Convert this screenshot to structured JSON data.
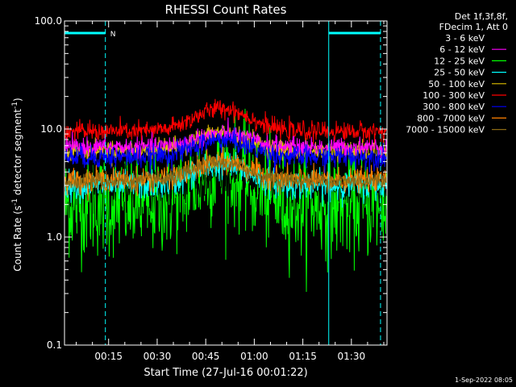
{
  "chart_data": {
    "type": "line",
    "title": "RHESSI Count Rates",
    "xlabel": "Start Time (27-Jul-16 00:01:22)",
    "ylabel_main": "Count Rate (s",
    "ylabel_sup1": "-1",
    "ylabel_mid": " detector segment",
    "ylabel_sup2": "-1",
    "ylabel_end": ")",
    "y_scale": "log",
    "ylim": [
      0.1,
      100.0
    ],
    "xlim_minutes": [
      1.37,
      101.0
    ],
    "y_ticks": [
      {
        "value": 100.0,
        "label": "100.0"
      },
      {
        "value": 10.0,
        "label": "10.0"
      },
      {
        "value": 1.0,
        "label": "1.0"
      },
      {
        "value": 0.1,
        "label": "0.1"
      }
    ],
    "x_ticks": [
      {
        "minute": 15,
        "label": "00:15"
      },
      {
        "minute": 30,
        "label": "00:30"
      },
      {
        "minute": 45,
        "label": "00:45"
      },
      {
        "minute": 60,
        "label": "01:00"
      },
      {
        "minute": 75,
        "label": "01:15"
      },
      {
        "minute": 90,
        "label": "01:30"
      }
    ],
    "legend_header": [
      "Det 1f,3f,8f,",
      "FDecim 1, Att 0"
    ],
    "legend_position": "top-right outside",
    "series": [
      {
        "name": "3 - 6 keV",
        "color": "#000000",
        "base": 3.0,
        "peak": 4.0,
        "noise": 0.22
      },
      {
        "name": "6 - 12 keV",
        "color": "#ff00ff",
        "base": 6.8,
        "peak": 9.0,
        "noise": 0.1
      },
      {
        "name": "12 - 25 keV",
        "color": "#00ff00",
        "base": 2.0,
        "peak": 4.2,
        "noise": 0.55
      },
      {
        "name": "25 - 50 keV",
        "color": "#00ffff",
        "base": 3.0,
        "peak": 4.6,
        "noise": 0.15
      },
      {
        "name": "50 - 100 keV",
        "color": "#e0c000",
        "base": 6.3,
        "peak": 9.2,
        "noise": 0.1
      },
      {
        "name": "100 - 300 keV",
        "color": "#ff0000",
        "base": 9.5,
        "peak": 15.5,
        "noise": 0.1
      },
      {
        "name": "300 - 800 keV",
        "color": "#0000ff",
        "base": 5.5,
        "peak": 8.0,
        "noise": 0.12
      },
      {
        "name": "800 - 7000 keV",
        "color": "#ff8000",
        "base": 3.4,
        "peak": 5.0,
        "noise": 0.12
      },
      {
        "name": "7000 - 15000 keV",
        "color": "#8b6914",
        "base": 3.3,
        "peak": 4.8,
        "noise": 0.1
      }
    ],
    "saa_regions_minutes": [
      [
        1.37,
        14.0
      ],
      [
        83.0,
        99.0
      ]
    ],
    "saa_flag_label": "N",
    "grid": false
  },
  "footer": {
    "timestamp": "1-Sep-2022 08:05"
  }
}
